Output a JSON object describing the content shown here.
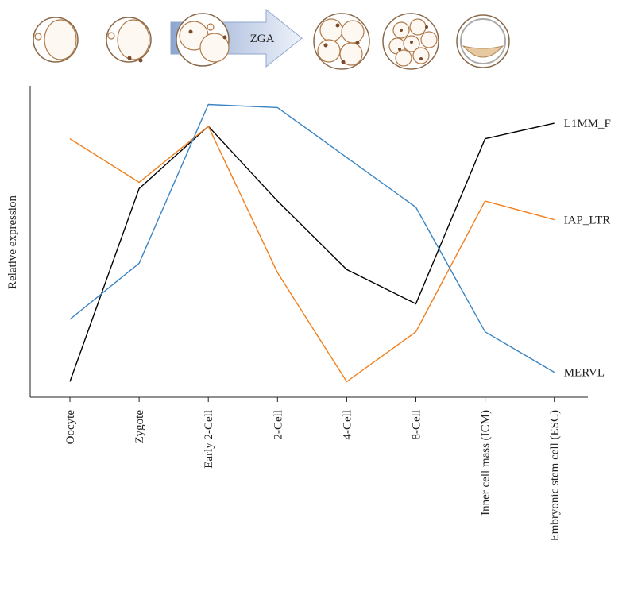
{
  "chart_data": {
    "type": "line",
    "annotation": "ZGA",
    "y_label": "Relative expression",
    "categories": [
      "Oocyte",
      "Zygote",
      "Early 2-Cell",
      "2-Cell",
      "4-Cell",
      "8-Cell",
      "Inner cell mass (ICM)",
      "Embryonic stem cell (ESC)"
    ],
    "series": [
      {
        "name": "L1MM_F",
        "color": "#000000",
        "values": [
          5,
          67,
          87,
          63,
          41,
          30,
          83,
          88
        ]
      },
      {
        "name": "IAP_LTR",
        "color": "#f07f1c",
        "values": [
          83,
          69,
          87,
          40,
          5,
          21,
          63,
          57
        ]
      },
      {
        "name": "MERVL",
        "color": "#3a84c4",
        "values": [
          25,
          43,
          94,
          93,
          77,
          61,
          21,
          8
        ]
      }
    ],
    "ylim": [
      0,
      100
    ]
  }
}
